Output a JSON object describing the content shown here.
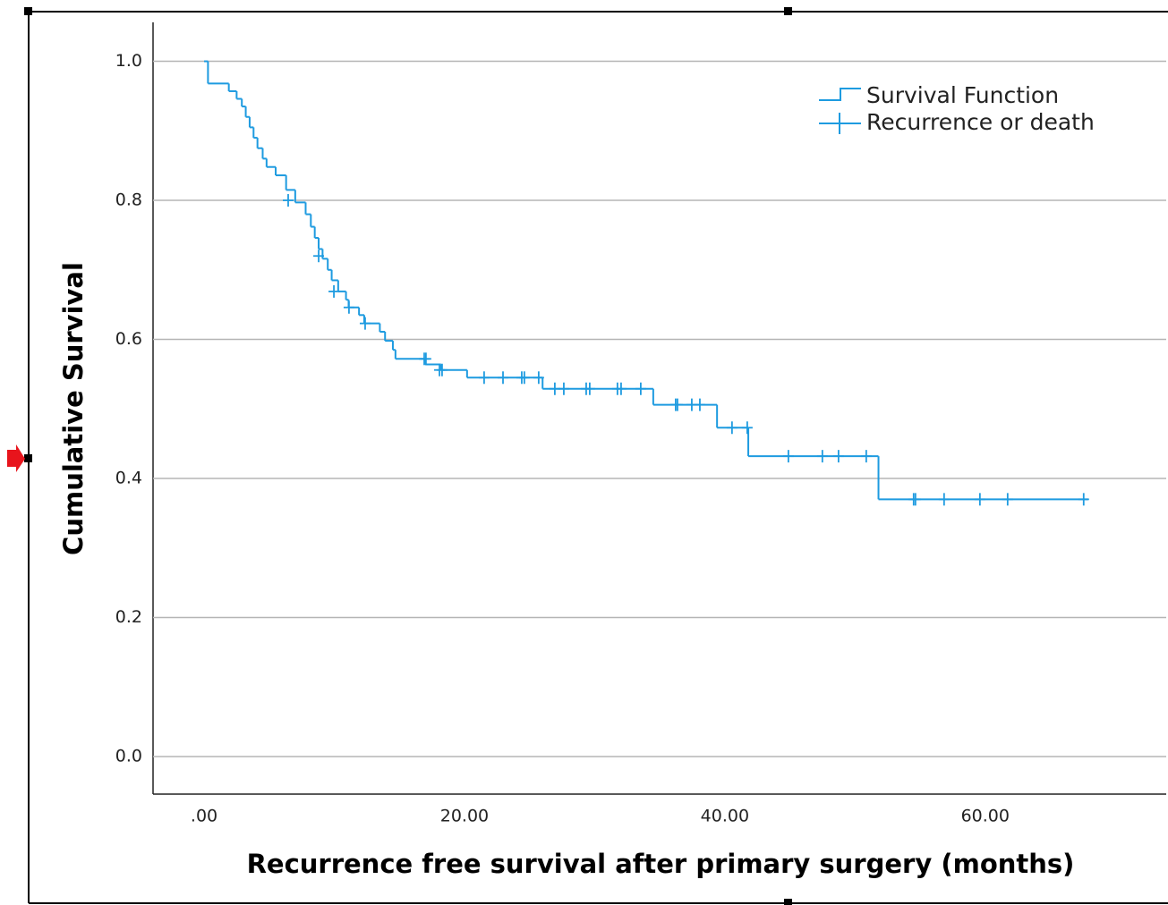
{
  "chart_data": {
    "type": "kaplan-meier",
    "x_label": "Recurrence free survival after primary surgery (months)",
    "y_label": "Cumulative Survival",
    "xlim": [
      -3.92,
      73.9
    ],
    "ylim": [
      -0.054,
      1.056
    ],
    "xticks": [
      {
        "value": 0,
        "label": ".00"
      },
      {
        "value": 20,
        "label": "20.00"
      },
      {
        "value": 40,
        "label": "40.00"
      },
      {
        "value": 60,
        "label": "60.00"
      }
    ],
    "yticks": [
      {
        "value": 0,
        "label": "0.0"
      },
      0.2,
      0.4,
      0.6,
      0.8,
      {
        "value": 1,
        "label": "1.0"
      }
    ],
    "grid": true,
    "legend": "upper right",
    "series": [
      {
        "name": "Survival Function",
        "color": "#1e9be0",
        "x": [
          0,
          0.3,
          1.9,
          2.5,
          2.9,
          3.2,
          3.5,
          3.8,
          4.1,
          4.5,
          4.8,
          5.5,
          6.3,
          7.0,
          7.8,
          8.2,
          8.5,
          8.8,
          9.1,
          9.5,
          9.8,
          10.3,
          10.9,
          11.1,
          11.9,
          12.3,
          13.5,
          13.9,
          14.5,
          14.7,
          17.0,
          18.2,
          20.2,
          26.0,
          34.5,
          39.4,
          41.8,
          51.8,
          67.9
        ],
        "values": [
          1.0,
          0.968,
          0.957,
          0.946,
          0.935,
          0.92,
          0.905,
          0.89,
          0.875,
          0.86,
          0.848,
          0.836,
          0.815,
          0.797,
          0.78,
          0.762,
          0.746,
          0.73,
          0.716,
          0.7,
          0.685,
          0.669,
          0.657,
          0.646,
          0.635,
          0.623,
          0.611,
          0.598,
          0.585,
          0.572,
          0.564,
          0.556,
          0.545,
          0.529,
          0.506,
          0.473,
          0.432,
          0.37,
          0.37
        ]
      },
      {
        "name": "Recurrence or death",
        "color": "#1e9be0",
        "x": [
          6.46,
          8.8,
          9.97,
          11.13,
          12.37,
          16.91,
          17.04,
          18.08,
          18.28,
          21.51,
          22.96,
          24.4,
          24.6,
          25.7,
          26.94,
          27.63,
          29.35,
          29.62,
          31.75,
          32.03,
          33.54,
          36.22,
          36.36,
          37.46,
          38.08,
          40.55,
          41.72,
          44.88,
          47.49,
          48.73,
          50.86,
          54.5,
          54.64,
          56.84,
          59.59,
          61.72,
          67.56
        ],
        "values": [
          0.8,
          0.72,
          0.669,
          0.646,
          0.623,
          0.572,
          0.572,
          0.556,
          0.556,
          0.545,
          0.545,
          0.545,
          0.545,
          0.545,
          0.529,
          0.529,
          0.529,
          0.529,
          0.529,
          0.529,
          0.529,
          0.506,
          0.506,
          0.506,
          0.506,
          0.473,
          0.473,
          0.432,
          0.432,
          0.432,
          0.432,
          0.37,
          0.37,
          0.37,
          0.37,
          0.37,
          0.37
        ]
      }
    ]
  }
}
